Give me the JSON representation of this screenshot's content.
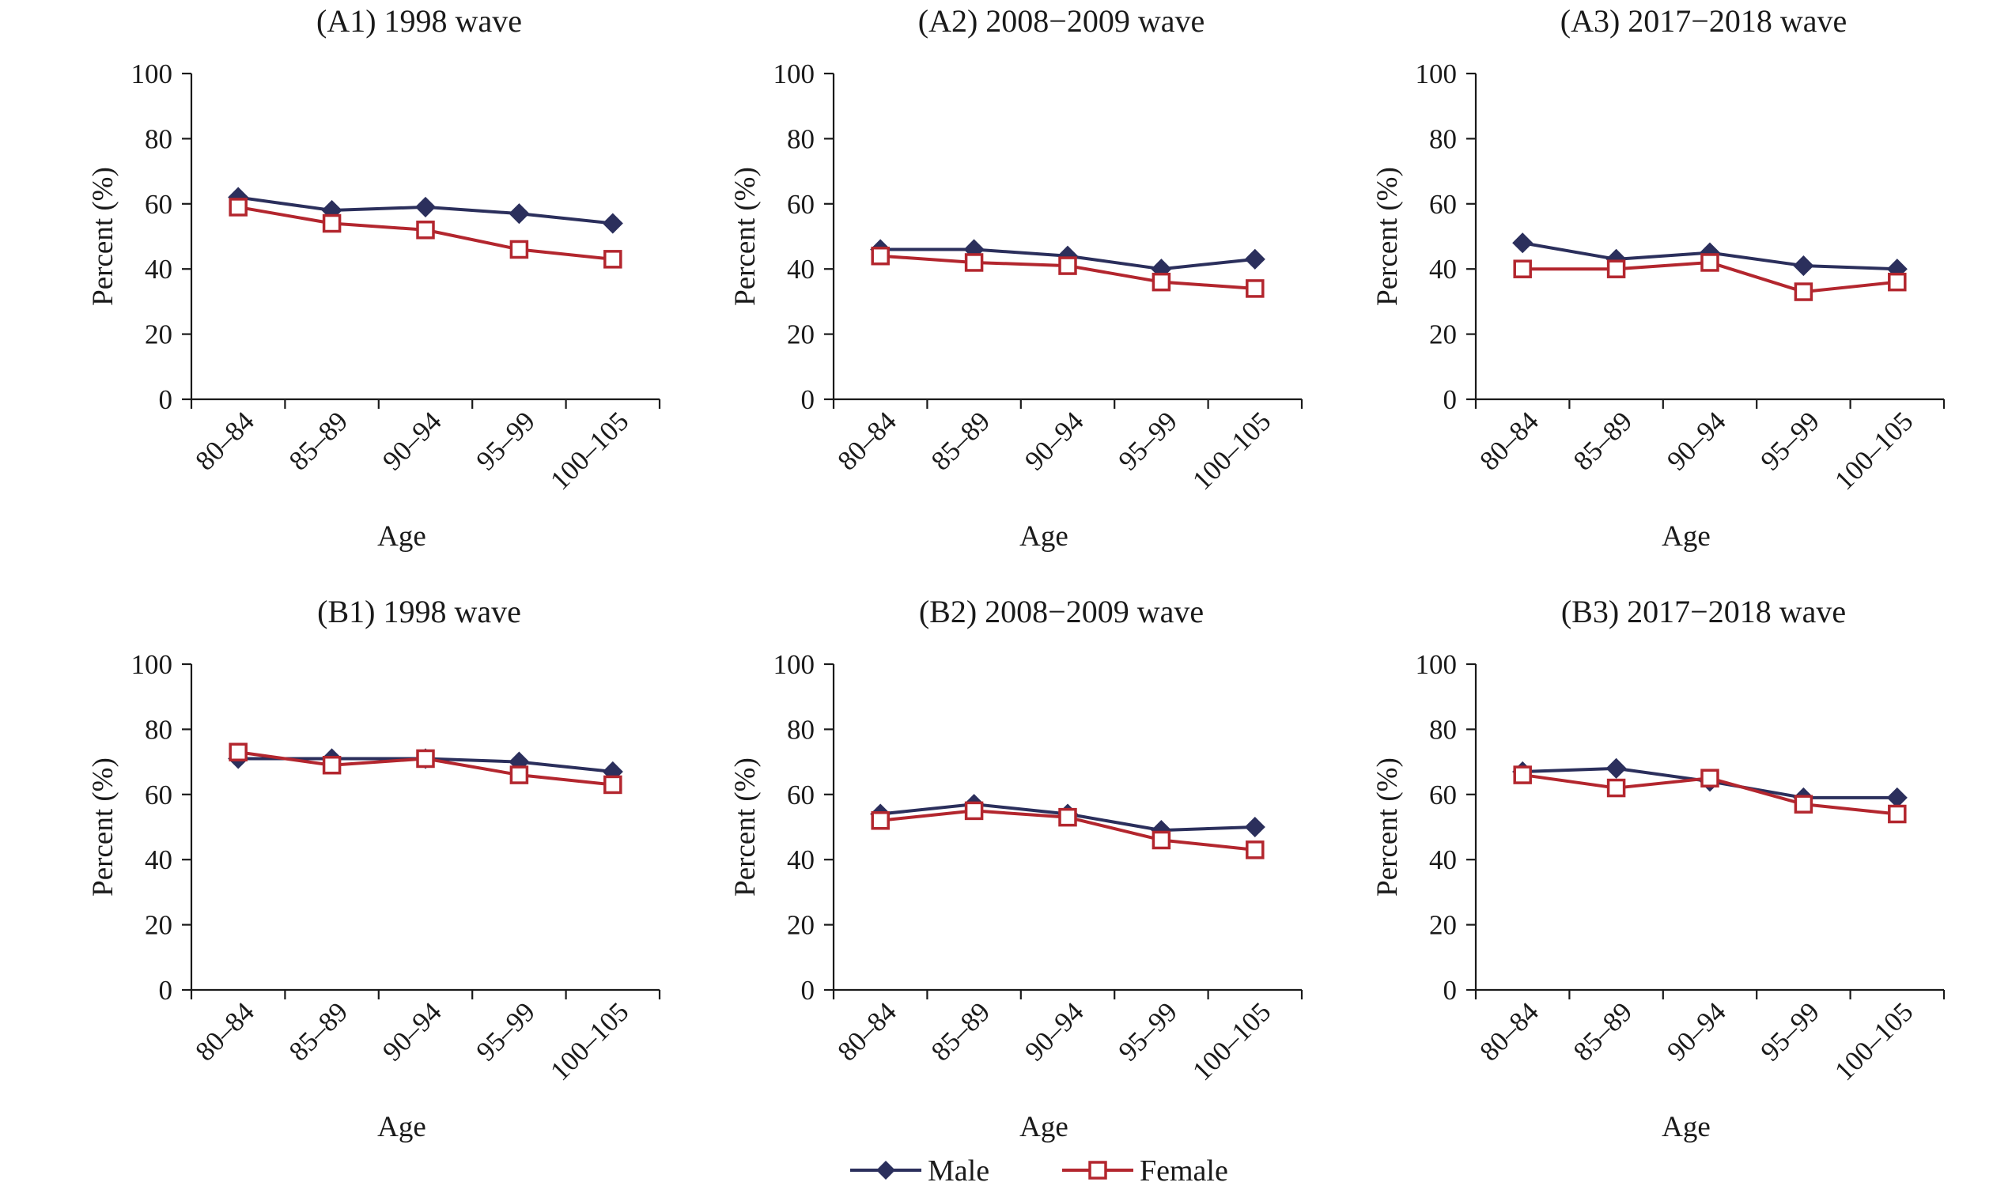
{
  "colors": {
    "male": "#2b2f5c",
    "female": "#b3262e",
    "axis": "#1a1a1a"
  },
  "legend": [
    {
      "name": "Male",
      "marker": "diamond-filled",
      "color": "#2b2f5c"
    },
    {
      "name": "Female",
      "marker": "square-open",
      "color": "#b3262e"
    }
  ],
  "chart_data": [
    {
      "type": "line",
      "title": "(A1) 1998 wave",
      "xlabel": "Age",
      "ylabel": "Percent (%)",
      "ylim": [
        0,
        100
      ],
      "yticks": [
        "0",
        "20",
        "40",
        "60",
        "80",
        "100"
      ],
      "categories": [
        "80–84",
        "85–89",
        "90–94",
        "95–99",
        "100–105"
      ],
      "series": [
        {
          "name": "Male",
          "values": [
            62,
            58,
            59,
            57,
            54
          ]
        },
        {
          "name": "Female",
          "values": [
            59,
            54,
            52,
            46,
            43
          ]
        }
      ]
    },
    {
      "type": "line",
      "title": "(A2) 2008−2009 wave",
      "xlabel": "Age",
      "ylabel": "Percent (%)",
      "ylim": [
        0,
        100
      ],
      "yticks": [
        "0",
        "20",
        "40",
        "60",
        "80",
        "100"
      ],
      "categories": [
        "80–84",
        "85–89",
        "90–94",
        "95–99",
        "100–105"
      ],
      "series": [
        {
          "name": "Male",
          "values": [
            46,
            46,
            44,
            40,
            43
          ]
        },
        {
          "name": "Female",
          "values": [
            44,
            42,
            41,
            36,
            34
          ]
        }
      ]
    },
    {
      "type": "line",
      "title": "(A3) 2017−2018 wave",
      "xlabel": "Age",
      "ylabel": "Percent (%)",
      "ylim": [
        0,
        100
      ],
      "yticks": [
        "0",
        "20",
        "40",
        "60",
        "80",
        "100"
      ],
      "categories": [
        "80–84",
        "85–89",
        "90–94",
        "95–99",
        "100–105"
      ],
      "series": [
        {
          "name": "Male",
          "values": [
            48,
            43,
            45,
            41,
            40
          ]
        },
        {
          "name": "Female",
          "values": [
            40,
            40,
            42,
            33,
            36
          ]
        }
      ]
    },
    {
      "type": "line",
      "title": "(B1) 1998 wave",
      "xlabel": "Age",
      "ylabel": "Percent (%)",
      "ylim": [
        0,
        100
      ],
      "yticks": [
        "0",
        "20",
        "40",
        "60",
        "80",
        "100"
      ],
      "categories": [
        "80–84",
        "85–89",
        "90–94",
        "95–99",
        "100–105"
      ],
      "series": [
        {
          "name": "Male",
          "values": [
            71,
            71,
            71,
            70,
            67
          ]
        },
        {
          "name": "Female",
          "values": [
            73,
            69,
            71,
            66,
            63
          ]
        }
      ]
    },
    {
      "type": "line",
      "title": "(B2) 2008−2009 wave",
      "xlabel": "Age",
      "ylabel": "Percent (%)",
      "ylim": [
        0,
        100
      ],
      "yticks": [
        "0",
        "20",
        "40",
        "60",
        "80",
        "100"
      ],
      "categories": [
        "80–84",
        "85–89",
        "90–94",
        "95–99",
        "100–105"
      ],
      "series": [
        {
          "name": "Male",
          "values": [
            54,
            57,
            54,
            49,
            50
          ]
        },
        {
          "name": "Female",
          "values": [
            52,
            55,
            53,
            46,
            43
          ]
        }
      ]
    },
    {
      "type": "line",
      "title": "(B3) 2017−2018 wave",
      "xlabel": "Age",
      "ylabel": "Percent (%)",
      "ylim": [
        0,
        100
      ],
      "yticks": [
        "0",
        "20",
        "40",
        "60",
        "80",
        "100"
      ],
      "categories": [
        "80–84",
        "85–89",
        "90–94",
        "95–99",
        "100–105"
      ],
      "series": [
        {
          "name": "Male",
          "values": [
            67,
            68,
            64,
            59,
            59
          ]
        },
        {
          "name": "Female",
          "values": [
            66,
            62,
            65,
            57,
            54
          ]
        }
      ]
    }
  ]
}
